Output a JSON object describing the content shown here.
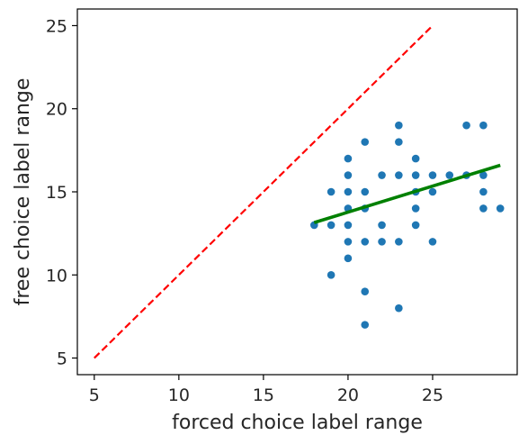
{
  "chart_data": {
    "type": "scatter",
    "xlabel": "forced choice label range",
    "ylabel": "free choice label range",
    "xlim": [
      4,
      30
    ],
    "ylim": [
      4,
      26
    ],
    "xticks": [
      5,
      10,
      15,
      20,
      25
    ],
    "yticks": [
      5,
      10,
      15,
      20,
      25
    ],
    "grid": false,
    "colors": {
      "points": "#1f77b4",
      "fit": "#008000",
      "identity": "#ff0000"
    },
    "points": [
      [
        18,
        13
      ],
      [
        19,
        15
      ],
      [
        19,
        13
      ],
      [
        19,
        10
      ],
      [
        20,
        17
      ],
      [
        20,
        16
      ],
      [
        20,
        15
      ],
      [
        20,
        14
      ],
      [
        20,
        13
      ],
      [
        20,
        12
      ],
      [
        20,
        11
      ],
      [
        21,
        18
      ],
      [
        21,
        15
      ],
      [
        21,
        14
      ],
      [
        21,
        12
      ],
      [
        21,
        9
      ],
      [
        21,
        7
      ],
      [
        22,
        16
      ],
      [
        22,
        13
      ],
      [
        22,
        12
      ],
      [
        23,
        19
      ],
      [
        23,
        18
      ],
      [
        23,
        16
      ],
      [
        23,
        12
      ],
      [
        23,
        8
      ],
      [
        24,
        17
      ],
      [
        24,
        16
      ],
      [
        24,
        15
      ],
      [
        24,
        14
      ],
      [
        24,
        13
      ],
      [
        25,
        16
      ],
      [
        25,
        15
      ],
      [
        25,
        12
      ],
      [
        26,
        16
      ],
      [
        27,
        19
      ],
      [
        27,
        16
      ],
      [
        28,
        19
      ],
      [
        28,
        16
      ],
      [
        28,
        15
      ],
      [
        28,
        14
      ],
      [
        29,
        14
      ]
    ],
    "fit_line": {
      "x": [
        18,
        29
      ],
      "y": [
        13.15,
        16.6
      ]
    },
    "identity_line": {
      "x": [
        5,
        25
      ],
      "y": [
        5,
        25
      ]
    }
  }
}
